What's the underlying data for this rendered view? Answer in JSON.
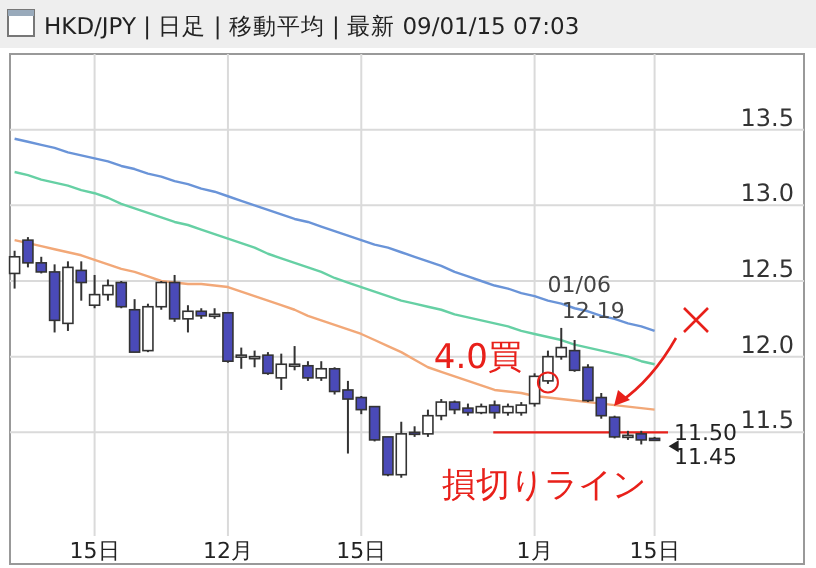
{
  "chart_data": {
    "type": "candlestick",
    "title": "HKD/JPY | 日足 | 移動平均 | 最新 09/01/15 07:03",
    "categories": [
      null,
      null,
      null,
      null,
      null,
      null,
      "15日",
      null,
      null,
      null,
      null,
      null,
      null,
      null,
      null,
      null,
      "12月",
      null,
      null,
      null,
      null,
      null,
      null,
      null,
      null,
      null,
      "15日",
      null,
      null,
      null,
      null,
      null,
      null,
      null,
      null,
      null,
      null,
      null,
      null,
      "1月",
      null,
      null,
      null,
      null,
      null,
      null,
      null,
      null,
      "15日"
    ],
    "ohlc": [
      [
        12.55,
        12.7,
        12.45,
        12.66
      ],
      [
        12.77,
        12.79,
        12.59,
        12.62
      ],
      [
        12.62,
        12.66,
        12.55,
        12.56
      ],
      [
        12.56,
        12.61,
        12.16,
        12.24
      ],
      [
        12.22,
        12.63,
        12.17,
        12.59
      ],
      [
        12.57,
        12.63,
        12.37,
        12.49
      ],
      [
        12.34,
        12.54,
        12.32,
        12.41
      ],
      [
        12.41,
        12.51,
        12.37,
        12.47
      ],
      [
        12.49,
        12.5,
        12.32,
        12.33
      ],
      [
        12.31,
        12.38,
        12.03,
        12.03
      ],
      [
        12.04,
        12.35,
        12.03,
        12.33
      ],
      [
        12.33,
        12.5,
        12.31,
        12.49
      ],
      [
        12.49,
        12.54,
        12.23,
        12.25
      ],
      [
        12.25,
        12.34,
        12.16,
        12.3
      ],
      [
        12.3,
        12.32,
        12.25,
        12.27
      ],
      [
        12.28,
        12.32,
        12.25,
        12.28
      ],
      [
        12.29,
        12.29,
        11.96,
        11.97
      ],
      [
        12.01,
        12.06,
        11.92,
        12.01
      ],
      [
        12.0,
        12.04,
        11.93,
        12.0
      ],
      [
        12.01,
        12.03,
        11.88,
        11.89
      ],
      [
        11.86,
        12.02,
        11.78,
        11.95
      ],
      [
        11.95,
        12.07,
        11.91,
        11.95
      ],
      [
        11.94,
        11.97,
        11.84,
        11.86
      ],
      [
        11.86,
        11.97,
        11.84,
        11.92
      ],
      [
        11.92,
        11.93,
        11.75,
        11.77
      ],
      [
        11.78,
        11.84,
        11.36,
        11.72
      ],
      [
        11.73,
        11.74,
        11.62,
        11.65
      ],
      [
        11.67,
        11.67,
        11.44,
        11.45
      ],
      [
        11.47,
        11.47,
        11.21,
        11.22
      ],
      [
        11.22,
        11.57,
        11.2,
        11.49
      ],
      [
        11.5,
        11.54,
        11.47,
        11.49
      ],
      [
        11.49,
        11.65,
        11.47,
        11.61
      ],
      [
        11.61,
        11.72,
        11.58,
        11.7
      ],
      [
        11.7,
        11.71,
        11.62,
        11.65
      ],
      [
        11.66,
        11.69,
        11.61,
        11.63
      ],
      [
        11.63,
        11.69,
        11.62,
        11.67
      ],
      [
        11.68,
        11.71,
        11.59,
        11.63
      ],
      [
        11.63,
        11.69,
        11.61,
        11.67
      ],
      [
        11.63,
        11.7,
        11.61,
        11.68
      ],
      [
        11.69,
        11.89,
        11.67,
        11.87
      ],
      [
        11.84,
        12.04,
        11.82,
        12.0
      ],
      [
        12.0,
        12.19,
        11.98,
        12.06
      ],
      [
        12.04,
        12.11,
        11.9,
        11.91
      ],
      [
        11.93,
        11.95,
        11.7,
        11.71
      ],
      [
        11.73,
        11.76,
        11.59,
        11.61
      ],
      [
        11.6,
        11.61,
        11.46,
        11.47
      ],
      [
        11.48,
        11.51,
        11.45,
        11.48
      ],
      [
        11.49,
        11.51,
        11.42,
        11.45
      ],
      [
        11.46,
        11.47,
        11.45,
        11.45
      ]
    ],
    "colors": [
      "#ffffff",
      "#4a4ab8",
      "#4a4ab8",
      "#4a4ab8",
      "#ffffff",
      "#4a4ab8",
      "#ffffff",
      "#ffffff",
      "#4a4ab8",
      "#4a4ab8",
      "#ffffff",
      "#ffffff",
      "#4a4ab8",
      "#ffffff",
      "#4a4ab8",
      "#ffffff",
      "#4a4ab8",
      "#ffffff",
      "#ffffff",
      "#4a4ab8",
      "#ffffff",
      "#ffffff",
      "#4a4ab8",
      "#ffffff",
      "#4a4ab8",
      "#4a4ab8",
      "#4a4ab8",
      "#4a4ab8",
      "#4a4ab8",
      "#ffffff",
      "#4a4ab8",
      "#ffffff",
      "#ffffff",
      "#4a4ab8",
      "#4a4ab8",
      "#ffffff",
      "#4a4ab8",
      "#ffffff",
      "#ffffff",
      "#ffffff",
      "#ffffff",
      "#ffffff",
      "#4a4ab8",
      "#4a4ab8",
      "#4a4ab8",
      "#4a4ab8",
      "#ffffff",
      "#4a4ab8",
      "#4a4ab8"
    ],
    "series": [
      {
        "type": "line",
        "color": "#6a94d8",
        "values": [
          13.44,
          13.42,
          13.4,
          13.38,
          13.35,
          13.33,
          13.31,
          13.29,
          13.26,
          13.24,
          13.21,
          13.19,
          13.16,
          13.14,
          13.11,
          13.09,
          13.06,
          13.03,
          13.0,
          12.97,
          12.94,
          12.91,
          12.89,
          12.86,
          12.83,
          12.8,
          12.77,
          12.74,
          12.72,
          12.69,
          12.66,
          12.63,
          12.6,
          12.56,
          12.53,
          12.5,
          12.47,
          12.45,
          12.42,
          12.4,
          12.37,
          12.35,
          12.32,
          12.3,
          12.27,
          12.25,
          12.22,
          12.2,
          12.17
        ]
      },
      {
        "type": "line",
        "color": "#66d0a4",
        "values": [
          13.22,
          13.2,
          13.17,
          13.15,
          13.13,
          13.1,
          13.08,
          13.05,
          13.01,
          12.98,
          12.95,
          12.92,
          12.89,
          12.87,
          12.84,
          12.81,
          12.78,
          12.75,
          12.72,
          12.68,
          12.65,
          12.62,
          12.59,
          12.56,
          12.52,
          12.49,
          12.46,
          12.43,
          12.4,
          12.37,
          12.35,
          12.33,
          12.31,
          12.28,
          12.26,
          12.24,
          12.22,
          12.2,
          12.17,
          12.15,
          12.13,
          12.11,
          12.08,
          12.06,
          12.04,
          12.02,
          12.0,
          11.97,
          11.95
        ]
      },
      {
        "type": "line",
        "color": "#f2a878",
        "values": [
          12.77,
          12.75,
          12.73,
          12.71,
          12.69,
          12.67,
          12.64,
          12.61,
          12.58,
          12.56,
          12.53,
          12.5,
          12.49,
          12.48,
          12.48,
          12.47,
          12.46,
          12.43,
          12.4,
          12.37,
          12.34,
          12.31,
          12.27,
          12.24,
          12.21,
          12.18,
          12.15,
          12.11,
          12.07,
          12.03,
          11.98,
          11.93,
          11.9,
          11.87,
          11.84,
          11.81,
          11.78,
          11.77,
          11.76,
          11.74,
          11.73,
          11.72,
          11.71,
          11.7,
          11.69,
          11.68,
          11.67,
          11.66,
          11.65
        ]
      }
    ],
    "ylim": [
      10.63,
      14.0
    ],
    "yticks": [
      {
        "value": 11.5,
        "label": "11.5"
      },
      {
        "value": 12.0,
        "label": "12.0"
      },
      {
        "value": 12.5,
        "label": "12.5"
      },
      {
        "value": 13.0,
        "label": "13.0"
      },
      {
        "value": 13.5,
        "label": "13.5"
      }
    ],
    "grid": true,
    "ref_lines": [
      {
        "axis": "y",
        "value": 11.5,
        "label": "11.50",
        "color": "#e8201a"
      }
    ],
    "annotations": [
      "01/06",
      "12.19",
      {
        "text": "4.0買",
        "y": 11.83
      },
      "損切りライン",
      "11.45"
    ]
  }
}
